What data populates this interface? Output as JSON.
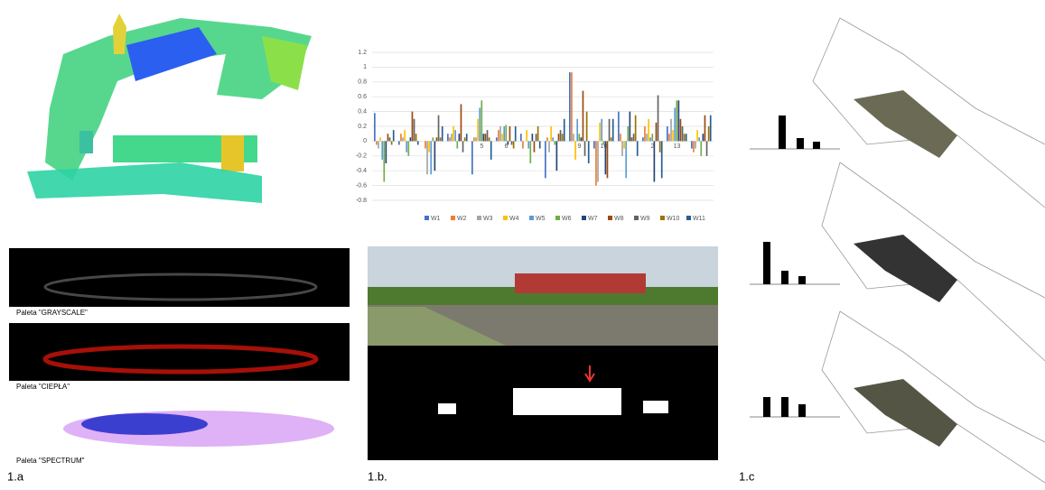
{
  "captions": {
    "palette_grayscale": "Paleta \"GRAYSCALE\"",
    "palette_warm": "Paleta \"CIEPŁA\"",
    "palette_spectrum": "Paleta \"SPECTRUM\"",
    "panel_a": "1.a",
    "panel_b": "1.b.",
    "panel_c": "1.c"
  },
  "chart_data": {
    "type": "bar",
    "categories": [
      null,
      null,
      null,
      null,
      "5",
      "6",
      null,
      null,
      "9",
      "10",
      null,
      "2",
      "13",
      null
    ],
    "ylim": [
      -0.8,
      1.2
    ],
    "yticks": [
      -0.8,
      -0.6,
      -0.4,
      -0.2,
      0,
      0.2,
      0.4,
      0.6,
      0.8,
      1,
      1.2
    ],
    "grid": true,
    "series": [
      {
        "name": "W1",
        "color": "#4472c4",
        "values": [
          0.38,
          -0.05,
          0,
          0.1,
          -0.45,
          0.05,
          0.1,
          -0.5,
          0.93,
          -0.1,
          0.4,
          0.05,
          0.2,
          -0.1
        ]
      },
      {
        "name": "W2",
        "color": "#ed7d31",
        "values": [
          -0.05,
          0.1,
          -0.1,
          0.05,
          0.05,
          0.15,
          -0.1,
          0.05,
          0.93,
          -0.6,
          0.1,
          0.2,
          0.1,
          -0.15
        ]
      },
      {
        "name": "W3",
        "color": "#a5a5a5",
        "values": [
          -0.1,
          0.05,
          -0.45,
          0.1,
          0.05,
          0.2,
          0,
          -0.15,
          0.1,
          -0.55,
          -0.2,
          0.1,
          0.3,
          -0.1
        ]
      },
      {
        "name": "W4",
        "color": "#ffc000",
        "values": [
          0.05,
          0.15,
          -0.15,
          0.2,
          0.3,
          0.1,
          0.15,
          0.2,
          -0.25,
          0.25,
          -0.1,
          0.3,
          0.15,
          0.15
        ]
      },
      {
        "name": "W5",
        "color": "#5b9bd5",
        "values": [
          -0.25,
          -0.15,
          -0.45,
          0.15,
          0.45,
          0.2,
          -0.1,
          0.05,
          0.3,
          0.3,
          -0.5,
          0.05,
          0.45,
          0.05
        ]
      },
      {
        "name": "W6",
        "color": "#70ad47",
        "values": [
          -0.55,
          -0.2,
          0.05,
          -0.1,
          0.55,
          0.22,
          -0.3,
          -0.05,
          0.1,
          -0.05,
          0.2,
          0.1,
          0.55,
          -0.2
        ]
      },
      {
        "name": "W7",
        "color": "#264478",
        "values": [
          -0.3,
          0.05,
          -0.4,
          0.1,
          0.1,
          -0.05,
          0.1,
          -0.4,
          0.05,
          -0.45,
          0.4,
          -0.55,
          0.55,
          0.1
        ]
      },
      {
        "name": "W8",
        "color": "#9e480e",
        "values": [
          0.1,
          0.4,
          0.05,
          0.5,
          0.1,
          0.2,
          -0.15,
          0.1,
          0.68,
          -0.5,
          0.05,
          0.25,
          0.3,
          0.35
        ]
      },
      {
        "name": "W9",
        "color": "#636363",
        "values": [
          0.05,
          0.3,
          0.35,
          -0.15,
          0.15,
          -0.05,
          0.1,
          0.15,
          -0.2,
          0.3,
          0.1,
          0.62,
          0.2,
          -0.2
        ]
      },
      {
        "name": "W10",
        "color": "#997300",
        "values": [
          -0.05,
          0.1,
          0.05,
          0.05,
          0.05,
          -0.1,
          0.2,
          0.1,
          0.4,
          0.05,
          0.35,
          -0.15,
          0.1,
          0.2
        ]
      },
      {
        "name": "W11",
        "color": "#255e91",
        "values": [
          0.15,
          -0.05,
          0.2,
          0.1,
          -0.25,
          0.2,
          -0.1,
          0.3,
          -0.3,
          0.3,
          -0.2,
          -0.5,
          0.1,
          0.35
        ]
      }
    ]
  }
}
